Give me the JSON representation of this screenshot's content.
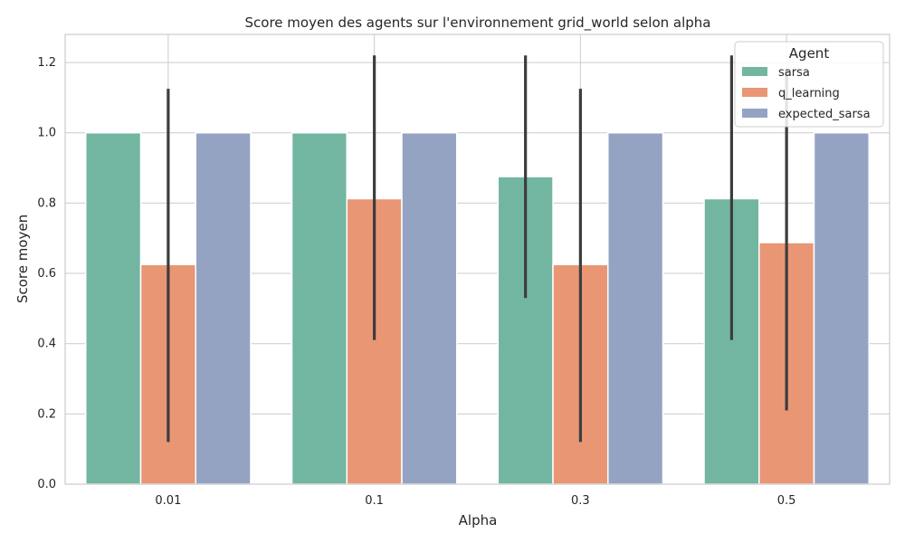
{
  "chart_data": {
    "type": "bar",
    "title": "Score moyen des agents sur l'environnement grid_world selon alpha",
    "xlabel": "Alpha",
    "ylabel": "Score moyen",
    "categories": [
      "0.01",
      "0.1",
      "0.3",
      "0.5"
    ],
    "ylim": [
      0,
      1.28
    ],
    "yticks": [
      0.0,
      0.2,
      0.4,
      0.6,
      0.8,
      1.0,
      1.2
    ],
    "ytick_labels": [
      "0.0",
      "0.2",
      "0.4",
      "0.6",
      "0.8",
      "1.0",
      "1.2"
    ],
    "grid": true,
    "legend": {
      "title": "Agent",
      "position": "top-right"
    },
    "series": [
      {
        "name": "sarsa",
        "color": "#72b6a1",
        "values": [
          1.0,
          1.0,
          0.875,
          0.8125
        ],
        "error_low": [
          1.0,
          1.0,
          0.53,
          0.41
        ],
        "error_high": [
          1.0,
          1.0,
          1.22,
          1.22
        ]
      },
      {
        "name": "q_learning",
        "color": "#e99675",
        "values": [
          0.625,
          0.8125,
          0.625,
          0.6875
        ],
        "error_low": [
          0.12,
          0.41,
          0.12,
          0.21
        ],
        "error_high": [
          1.125,
          1.22,
          1.125,
          1.18
        ]
      },
      {
        "name": "expected_sarsa",
        "color": "#95a3c3",
        "values": [
          1.0,
          1.0,
          1.0,
          1.0
        ],
        "error_low": [
          1.0,
          1.0,
          1.0,
          1.0
        ],
        "error_high": [
          1.0,
          1.0,
          1.0,
          1.0
        ]
      }
    ]
  }
}
